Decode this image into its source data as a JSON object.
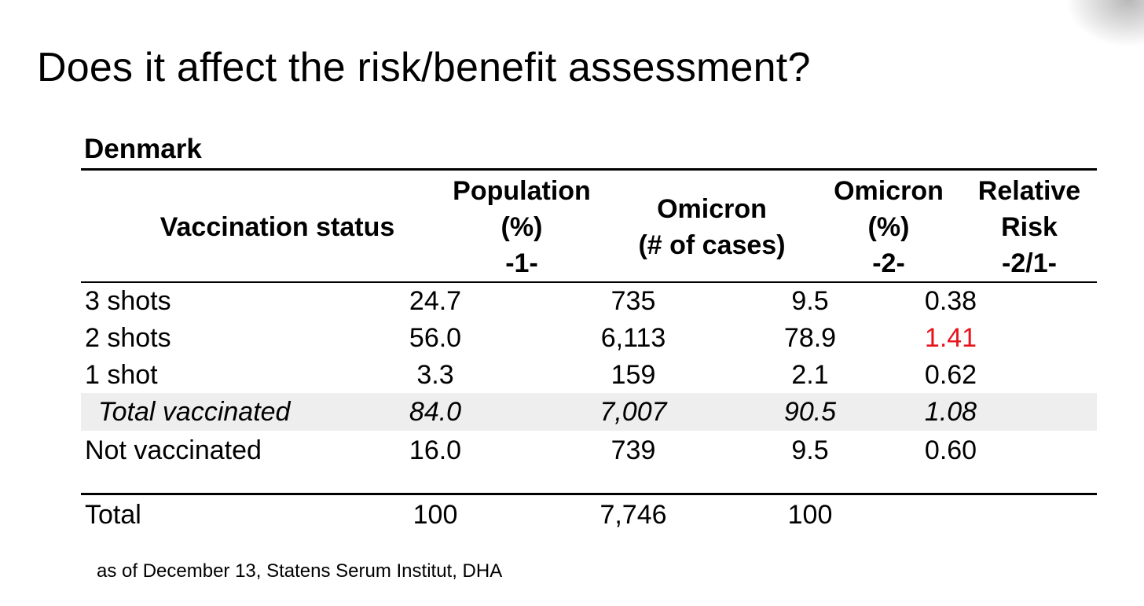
{
  "slide": {
    "title": "Does it affect the risk/benefit assessment?",
    "country": "Denmark",
    "source": "as of December 13, Statens Serum Institut, DHA"
  },
  "table": {
    "headers": {
      "status": [
        "Vaccination status"
      ],
      "population": [
        "Population",
        "(%)",
        "-1-"
      ],
      "cases": [
        "Omicron",
        "(# of cases)"
      ],
      "omicron_pct": [
        "Omicron",
        "(%)",
        "-2-"
      ],
      "relative_risk": [
        "Relative",
        "Risk",
        "-2/1-"
      ]
    },
    "rows": [
      {
        "status": "3 shots",
        "population": "24.7",
        "cases": "735",
        "omicron_pct": "9.5",
        "relative_risk": "0.38"
      },
      {
        "status": "2 shots",
        "population": "56.0",
        "cases": "6,113",
        "omicron_pct": "78.9",
        "relative_risk": "1.41"
      },
      {
        "status": "1 shot",
        "population": "3.3",
        "cases": "159",
        "omicron_pct": "2.1",
        "relative_risk": "0.62"
      },
      {
        "status": "Total vaccinated",
        "population": "84.0",
        "cases": "7,007",
        "omicron_pct": "90.5",
        "relative_risk": "1.08"
      },
      {
        "status": "Not vaccinated",
        "population": "16.0",
        "cases": "739",
        "omicron_pct": "9.5",
        "relative_risk": "0.60"
      }
    ],
    "total": {
      "status": "Total",
      "population": "100",
      "cases": "7,746",
      "omicron_pct": "100",
      "relative_risk": ""
    }
  },
  "colors": {
    "highlight_row_bg": "#eeeeee",
    "relative_risk_alert": "#e8141c"
  }
}
